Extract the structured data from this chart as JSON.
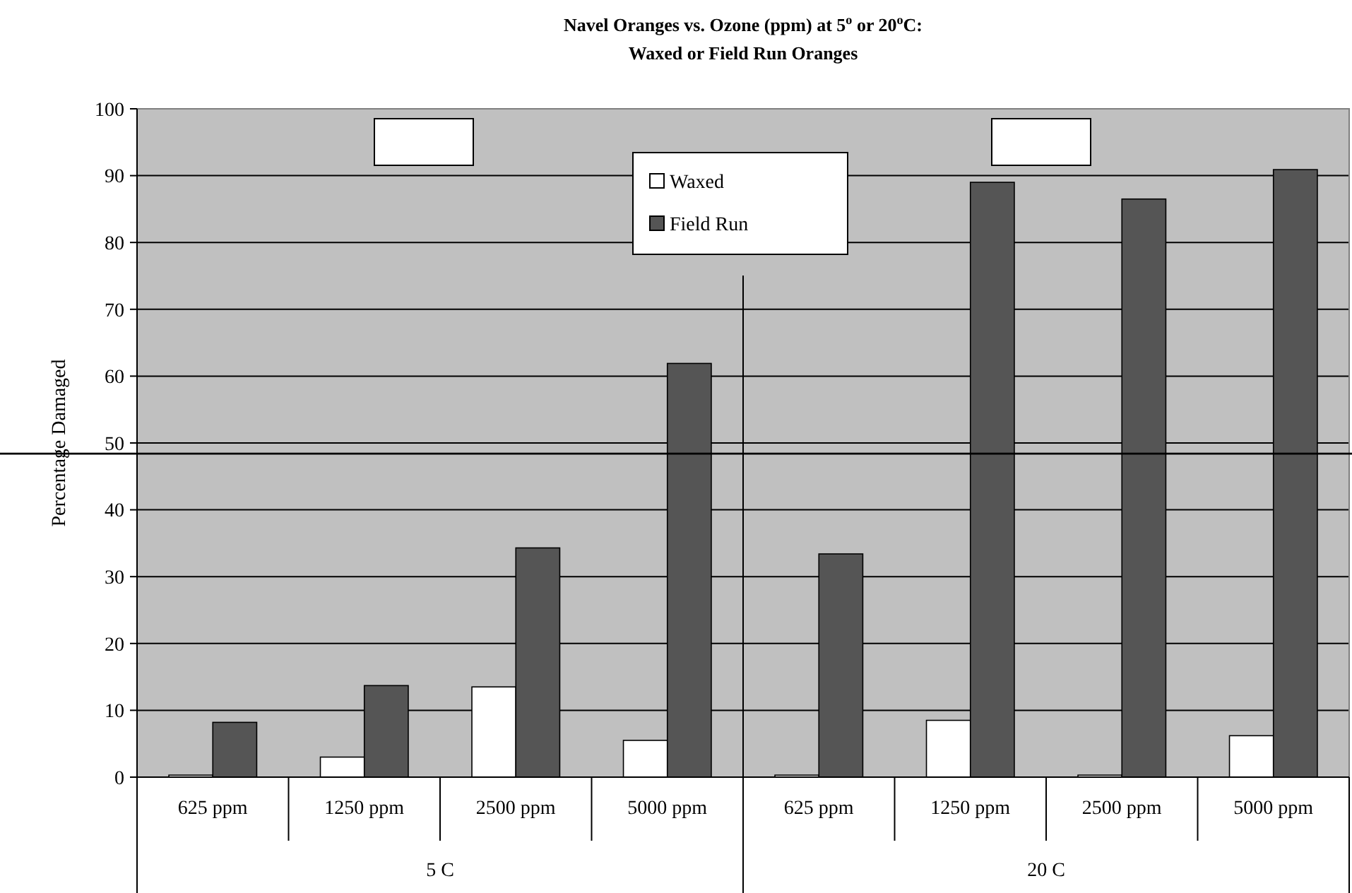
{
  "chart_data": {
    "type": "bar",
    "title": "Navel Oranges vs. Ozone (ppm) at 5$^{o}$ or 20$^{o}$C:",
    "subtitle": "Waxed or Field Run Oranges",
    "ylabel": "Percentage Damaged",
    "categories": [
      "625 ppm",
      "1250 ppm",
      "2500 ppm",
      "5000 ppm",
      "625 ppm",
      "1250 ppm",
      "2500 ppm",
      "5000 ppm"
    ],
    "series": [
      {
        "name": "Waxed",
        "color": "#ffffff",
        "values": [
          0.3,
          3,
          13.5,
          5.5,
          0.3,
          8.5,
          0.3,
          6.2
        ]
      },
      {
        "name": "Field Run",
        "color": "#555555",
        "values": [
          8.2,
          13.7,
          34.3,
          61.9,
          33.4,
          89,
          86.5,
          90.9
        ]
      }
    ],
    "ylim": [
      0,
      100
    ],
    "yticks": [
      0,
      10,
      20,
      30,
      40,
      50,
      60,
      70,
      80,
      90,
      100
    ],
    "grid": "y",
    "legend": "top",
    "ref_lines": [
      {
        "axis": "y",
        "value": 48.4,
        "color": "#000000"
      }
    ],
    "annotations": [
      "5 C",
      "20 C"
    ]
  }
}
